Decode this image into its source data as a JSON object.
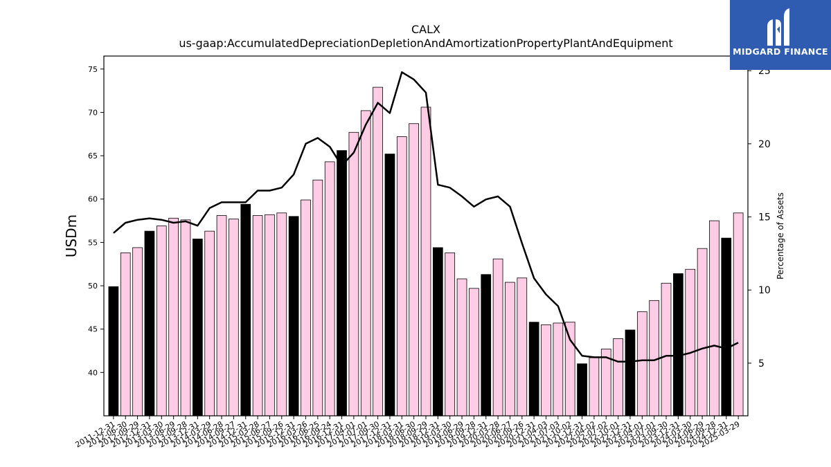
{
  "chart_data": {
    "type": "bar",
    "title": "CALX",
    "subtitle": "us-gaap:AccumulatedDepreciationDepletionAndAmortizationPropertyPlantAndEquipment",
    "ylabel": "USDm",
    "y2label": "Percentage of Assets",
    "ylim": [
      35,
      76.5
    ],
    "y2lim": [
      1.4,
      26
    ],
    "yticks": [
      40,
      45,
      50,
      55,
      60,
      65,
      70,
      75
    ],
    "y2ticks": [
      5,
      10,
      15,
      20,
      25
    ],
    "categories": [
      "2011-12-31",
      "2012-06-30",
      "2012-09-29",
      "2012-12-31",
      "2013-03-30",
      "2013-06-29",
      "2013-09-28",
      "2013-12-31",
      "2014-03-29",
      "2014-06-28",
      "2014-09-27",
      "2014-12-31",
      "2015-03-28",
      "2015-06-27",
      "2015-09-26",
      "2015-12-31",
      "2016-03-26",
      "2016-06-25",
      "2016-09-24",
      "2016-12-31",
      "2017-04-01",
      "2017-07-01",
      "2017-09-30",
      "2017-12-31",
      "2018-03-31",
      "2018-06-30",
      "2018-09-29",
      "2018-12-31",
      "2019-03-30",
      "2019-06-29",
      "2019-09-28",
      "2019-12-31",
      "2020-03-28",
      "2020-06-27",
      "2020-09-26",
      "2020-12-31",
      "2021-04-03",
      "2021-07-03",
      "2021-10-02",
      "2021-12-31",
      "2022-04-02",
      "2022-07-02",
      "2022-10-01",
      "2022-12-31",
      "2023-04-01",
      "2023-07-01",
      "2023-09-30",
      "2023-12-31",
      "2024-03-30",
      "2024-06-29",
      "2024-09-28",
      "2024-12-31",
      "2025-03-29"
    ],
    "series": [
      {
        "values": [
          49.9,
          53.8,
          54.4,
          56.3,
          56.9,
          57.8,
          57.6,
          55.4,
          56.3,
          58.1,
          57.7,
          59.4,
          58.1,
          58.2,
          58.4,
          58.0,
          59.9,
          62.2,
          64.3,
          65.6,
          67.7,
          70.2,
          72.9,
          65.2,
          67.2,
          68.7,
          70.6,
          54.4,
          53.8,
          50.8,
          49.7,
          51.3,
          53.1,
          50.4,
          50.9,
          45.8,
          45.5,
          45.7,
          45.8,
          41.0,
          41.7,
          42.7,
          43.9,
          44.9,
          47.0,
          48.3,
          50.3,
          51.4,
          51.9,
          54.3,
          57.5,
          55.5,
          58.4
        ],
        "colors": [
          "#000000",
          "#ffcce6",
          "#ffcce6",
          "#000000",
          "#ffcce6",
          "#ffcce6",
          "#ffcce6",
          "#000000",
          "#ffcce6",
          "#ffcce6",
          "#ffcce6",
          "#000000",
          "#ffcce6",
          "#ffcce6",
          "#ffcce6",
          "#000000",
          "#ffcce6",
          "#ffcce6",
          "#ffcce6",
          "#000000",
          "#ffcce6",
          "#ffcce6",
          "#ffcce6",
          "#000000",
          "#ffcce6",
          "#ffcce6",
          "#ffcce6",
          "#000000",
          "#ffcce6",
          "#ffcce6",
          "#ffcce6",
          "#000000",
          "#ffcce6",
          "#ffcce6",
          "#ffcce6",
          "#000000",
          "#ffcce6",
          "#ffcce6",
          "#ffcce6",
          "#000000",
          "#ffcce6",
          "#ffcce6",
          "#ffcce6",
          "#000000",
          "#ffcce6",
          "#ffcce6",
          "#ffcce6",
          "#000000",
          "#ffcce6",
          "#ffcce6",
          "#ffcce6",
          "#000000",
          "#ffcce6"
        ]
      }
    ],
    "line_series": {
      "axis": "right",
      "color": "#000000",
      "values": [
        13.9,
        14.6,
        14.8,
        14.9,
        14.8,
        14.6,
        14.7,
        14.4,
        15.6,
        16.0,
        16.0,
        16.0,
        16.8,
        16.8,
        17.0,
        17.9,
        20.0,
        20.4,
        19.8,
        18.5,
        19.4,
        21.3,
        22.8,
        22.1,
        24.9,
        24.4,
        23.5,
        17.2,
        17.0,
        16.4,
        15.7,
        16.2,
        16.4,
        15.7,
        13.2,
        10.8,
        9.7,
        8.9,
        6.6,
        5.5,
        5.4,
        5.4,
        5.1,
        5.1,
        5.2,
        5.2,
        5.5,
        5.5,
        5.7,
        6.0,
        6.2,
        6.0,
        6.4
      ]
    },
    "grid": false,
    "legend": "none"
  },
  "brand": {
    "name": "MIDGARD FINANCE",
    "color": "#2f5bb0"
  }
}
